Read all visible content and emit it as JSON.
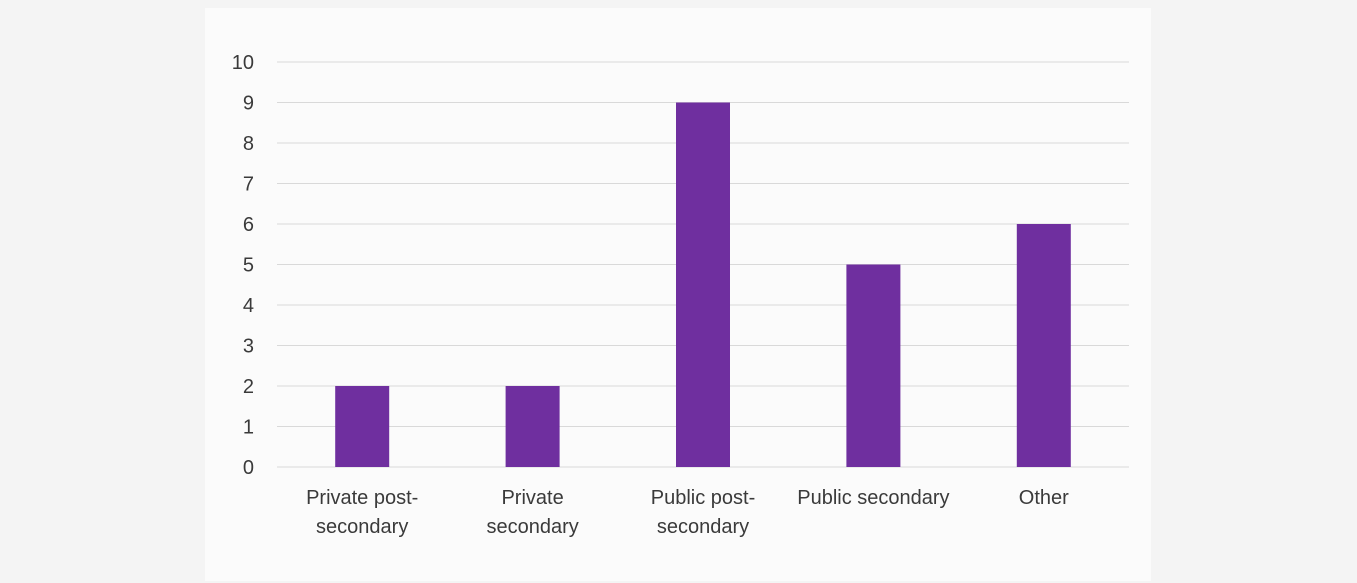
{
  "chart_data": {
    "type": "bar",
    "title": "",
    "xlabel": "",
    "ylabel": "",
    "categories": [
      [
        "Private post-",
        "secondary"
      ],
      [
        "Private",
        "secondary"
      ],
      [
        "Public post-",
        "secondary"
      ],
      [
        "Public secondary"
      ],
      [
        "Other"
      ]
    ],
    "values": [
      2,
      2,
      9,
      5,
      6
    ],
    "ylim": [
      0,
      10
    ],
    "yticks": [
      "0",
      "1",
      "2",
      "3",
      "4",
      "5",
      "6",
      "7",
      "8",
      "9",
      "10"
    ],
    "grid": true,
    "legend": "none",
    "colors": {
      "bar": "#6f2f9f",
      "grid": "#d9d9d9",
      "text": "#3a3a3a"
    }
  }
}
